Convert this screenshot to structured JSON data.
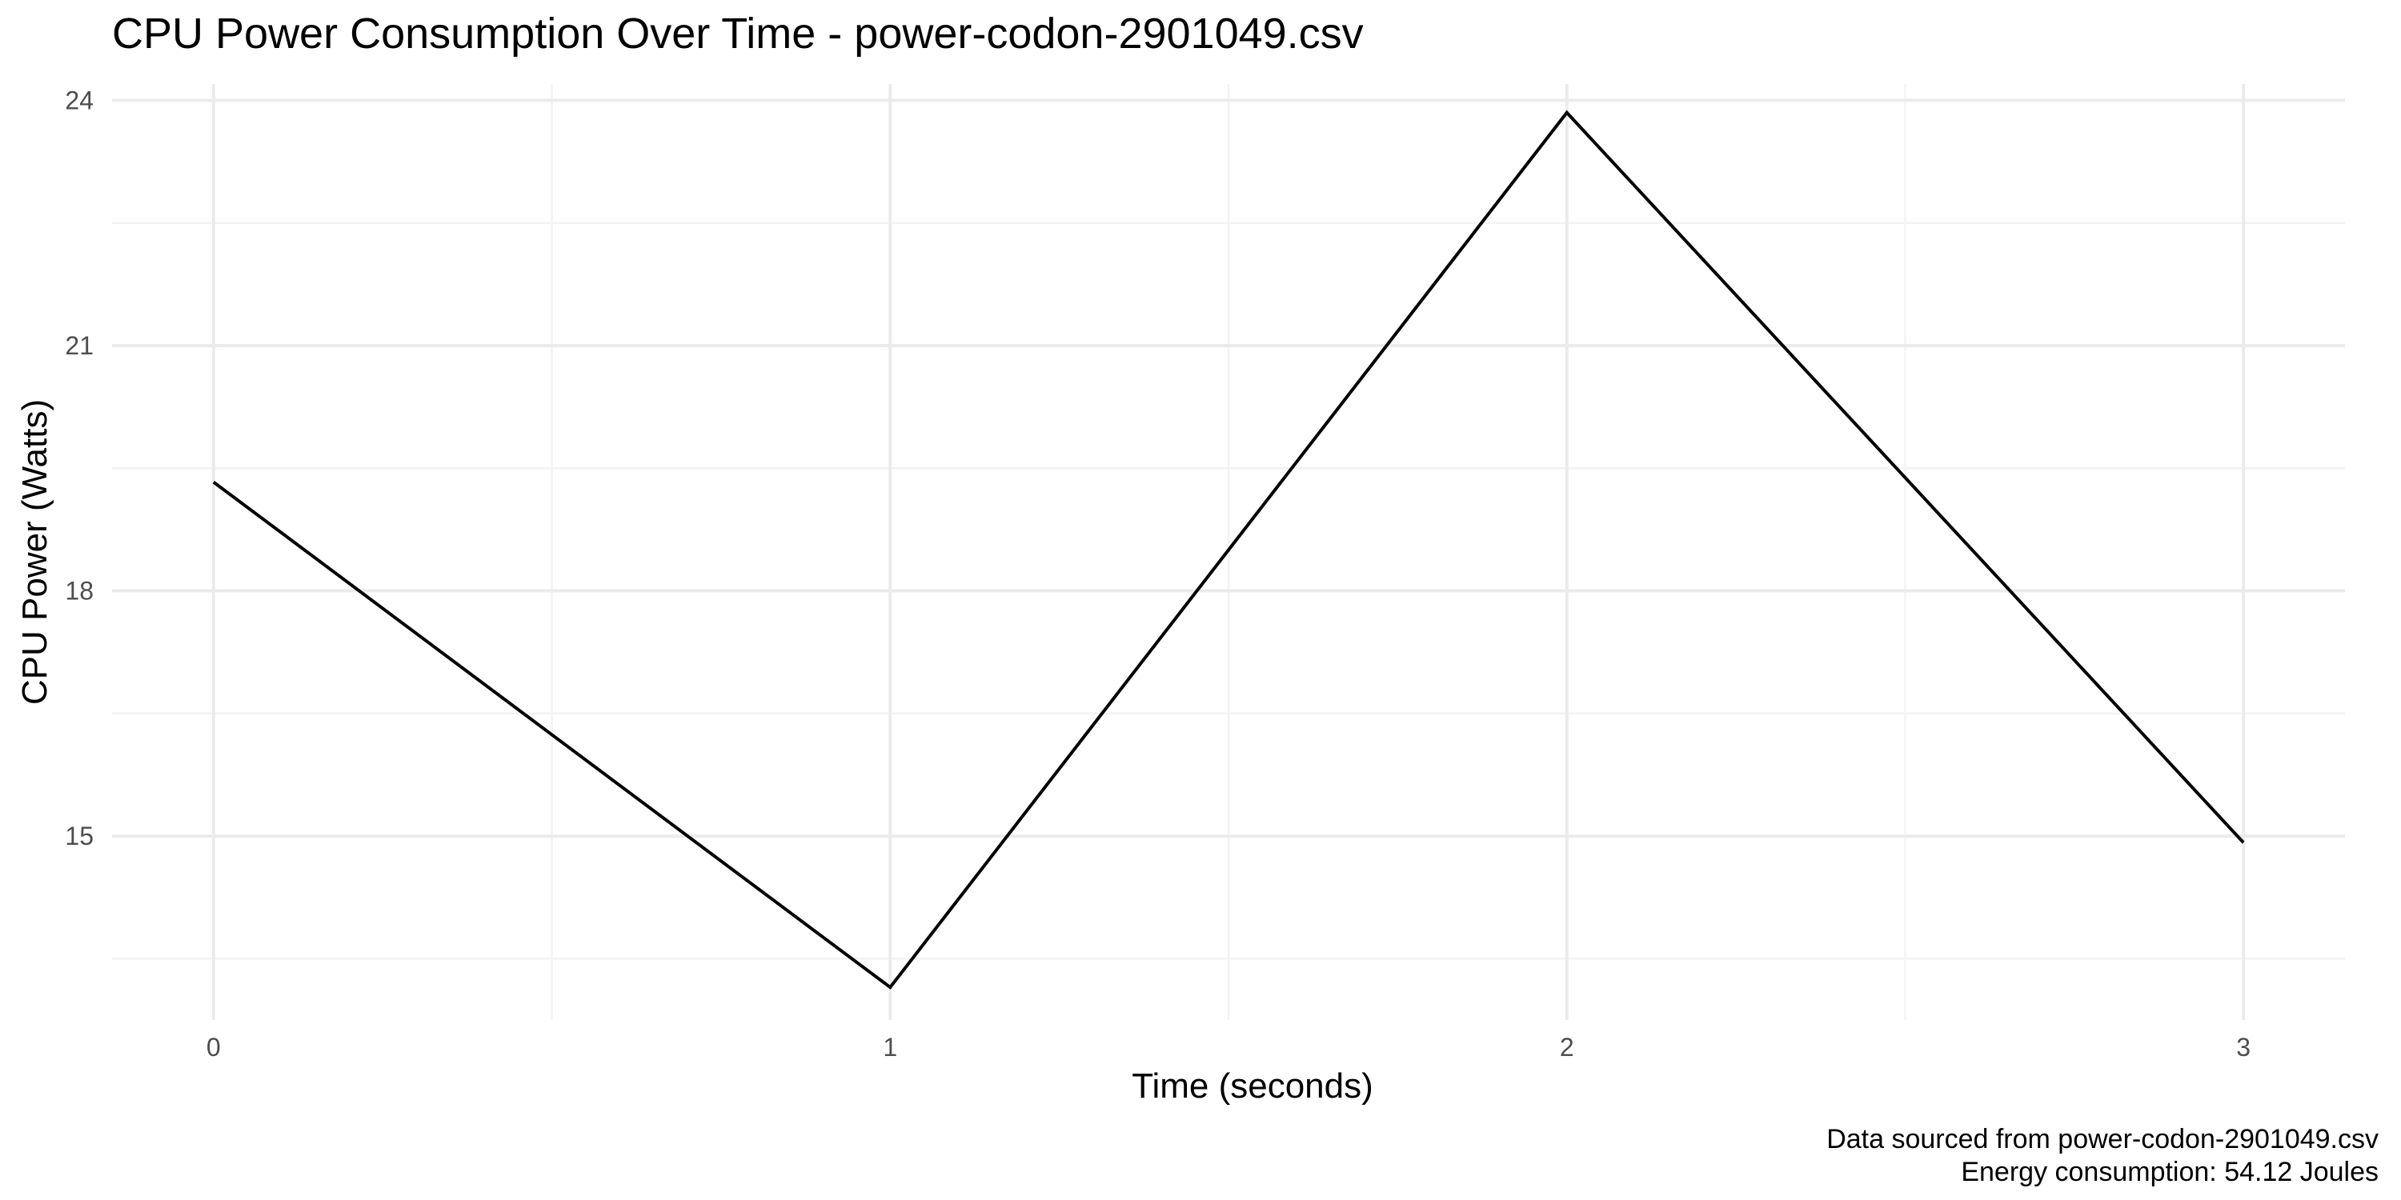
{
  "chart_data": {
    "type": "line",
    "title": "CPU Power Consumption Over Time - power-codon-2901049.csv",
    "xlabel": "Time (seconds)",
    "ylabel": "CPU Power (Watts)",
    "x": [
      0,
      1,
      2,
      3
    ],
    "series": [
      {
        "values": [
          19.33,
          13.15,
          23.85,
          14.92
        ]
      }
    ],
    "xlim": [
      -0.15,
      3.15
    ],
    "ylim": [
      12.75,
      24.2
    ],
    "x_ticks": [
      0,
      1,
      2,
      3
    ],
    "x_tick_labels": [
      "0",
      "1",
      "2",
      "3"
    ],
    "x_minor_ticks": [
      0.5,
      1.5,
      2.5
    ],
    "y_ticks": [
      15,
      18,
      21,
      24
    ],
    "y_tick_labels": [
      "15",
      "18",
      "21",
      "24"
    ],
    "y_minor_ticks": [
      13.5,
      16.5,
      19.5,
      22.5
    ],
    "grid": true,
    "legend": "none",
    "line_color": "#000000",
    "grid_color": "#ebebeb",
    "caption_lines": [
      "Data sourced from power-codon-2901049.csv",
      "Energy consumption:  54.12  Joules"
    ]
  }
}
